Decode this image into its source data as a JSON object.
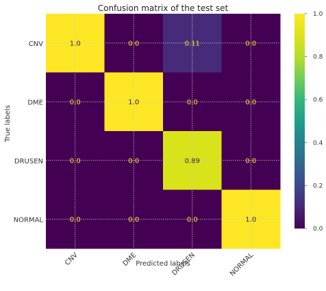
{
  "chart_data": {
    "type": "heatmap",
    "title": "Confusion matrix of the test set",
    "xlabel": "Predicted labels",
    "ylabel": "True labels",
    "x_categories": [
      "CNV",
      "DME",
      "DRUSEN",
      "NORMAL"
    ],
    "y_categories": [
      "CNV",
      "DME",
      "DRUSEN",
      "NORMAL"
    ],
    "values": [
      [
        1.0,
        0.0,
        0.11,
        0.0
      ],
      [
        0.0,
        1.0,
        0.0,
        0.0
      ],
      [
        0.0,
        0.0,
        0.89,
        0.0
      ],
      [
        0.0,
        0.0,
        0.0,
        1.0
      ]
    ],
    "cell_labels": [
      [
        "1.0",
        "0.0",
        "0.11",
        "0.0"
      ],
      [
        "0.0",
        "1.0",
        "0.0",
        "0.0"
      ],
      [
        "0.0",
        "0.0",
        "0.89",
        "0.0"
      ],
      [
        "0.0",
        "0.0",
        "0.0",
        "1.0"
      ]
    ],
    "colorbar": {
      "range": [
        0.0,
        1.0
      ],
      "ticks": [
        "0.0",
        "0.2",
        "0.4",
        "0.6",
        "0.8",
        "1.0"
      ],
      "colormap": "viridis"
    },
    "x_tick_rotation": "45 degrees",
    "grid": true,
    "colors": {
      "low_text": "#f5e61e",
      "high_text": "#3b1c5a"
    }
  }
}
